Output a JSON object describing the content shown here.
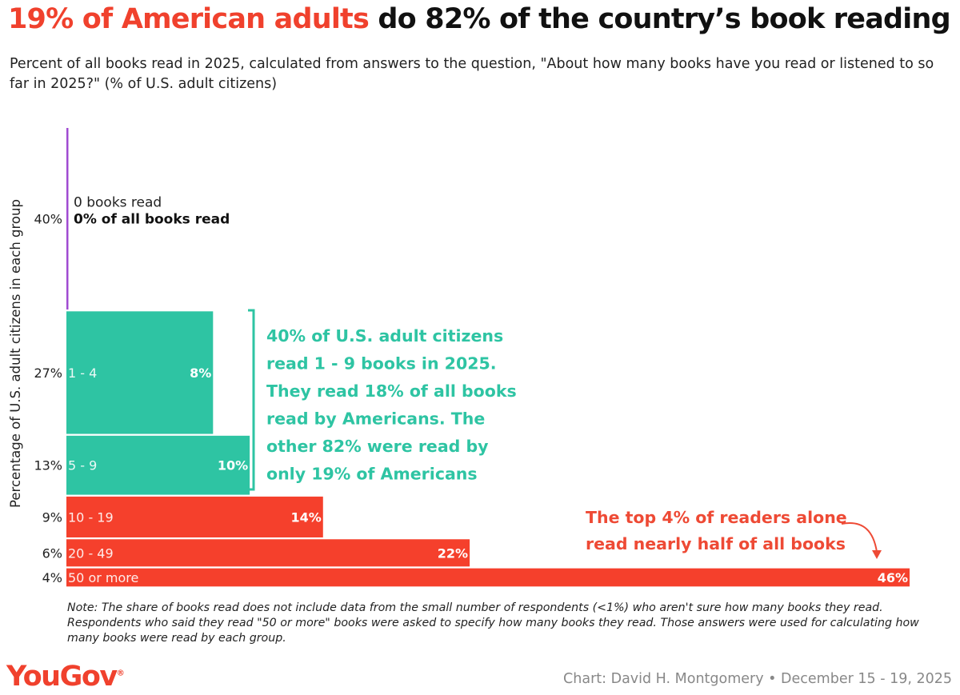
{
  "title": {
    "highlight": "19% of American adults",
    "rest": " do 82% of the country’s book reading"
  },
  "subtitle": "Percent of all books read in 2025, calculated from answers to the question, \"About how many books have you read or listened to so far in 2025?\" (% of U.S. adult citizens)",
  "chart_data": {
    "type": "bar",
    "ylabel": "Percentage of U.S. adult citizens in each group",
    "categories": [
      "0",
      "1 - 4",
      "5 - 9",
      "10 - 19",
      "20 - 49",
      "50 or more"
    ],
    "population_share": [
      40,
      27,
      13,
      9,
      6,
      4
    ],
    "population_labels": [
      "40%",
      "27%",
      "13%",
      "9%",
      "6%",
      "4%"
    ],
    "books_share": [
      0,
      8,
      10,
      14,
      22,
      46
    ],
    "books_labels": [
      "",
      "8%",
      "10%",
      "14%",
      "22%",
      "46%"
    ],
    "group_colors": [
      "#a04bd1",
      "#2ec4a3",
      "#2ec4a3",
      "#f5402c",
      "#f5402c",
      "#f5402c"
    ],
    "zero_label": {
      "line1": "0 books read",
      "line2": "0% of all books read"
    },
    "annotation_teal": [
      "40% of U.S. adult citizens",
      "read 1 - 9 books in 2025.",
      "They read 18% of all books",
      "read by Americans. The",
      "other 82% were read by",
      "only 19% of Americans"
    ],
    "annotation_red": [
      "The top 4% of readers alone",
      "read nearly half of all books"
    ]
  },
  "note": "Note: The share of books read does not include data from the small number of respondents (<1%) who aren't sure how many books they read. Respondents who said they read \"50 or more\" books were asked to specify how many books they read. Those answers were used for calculating how many books were read by each group.",
  "logo": "YouGov",
  "credit": "Chart: David H. Montgomery • December 15 - 19, 2025"
}
